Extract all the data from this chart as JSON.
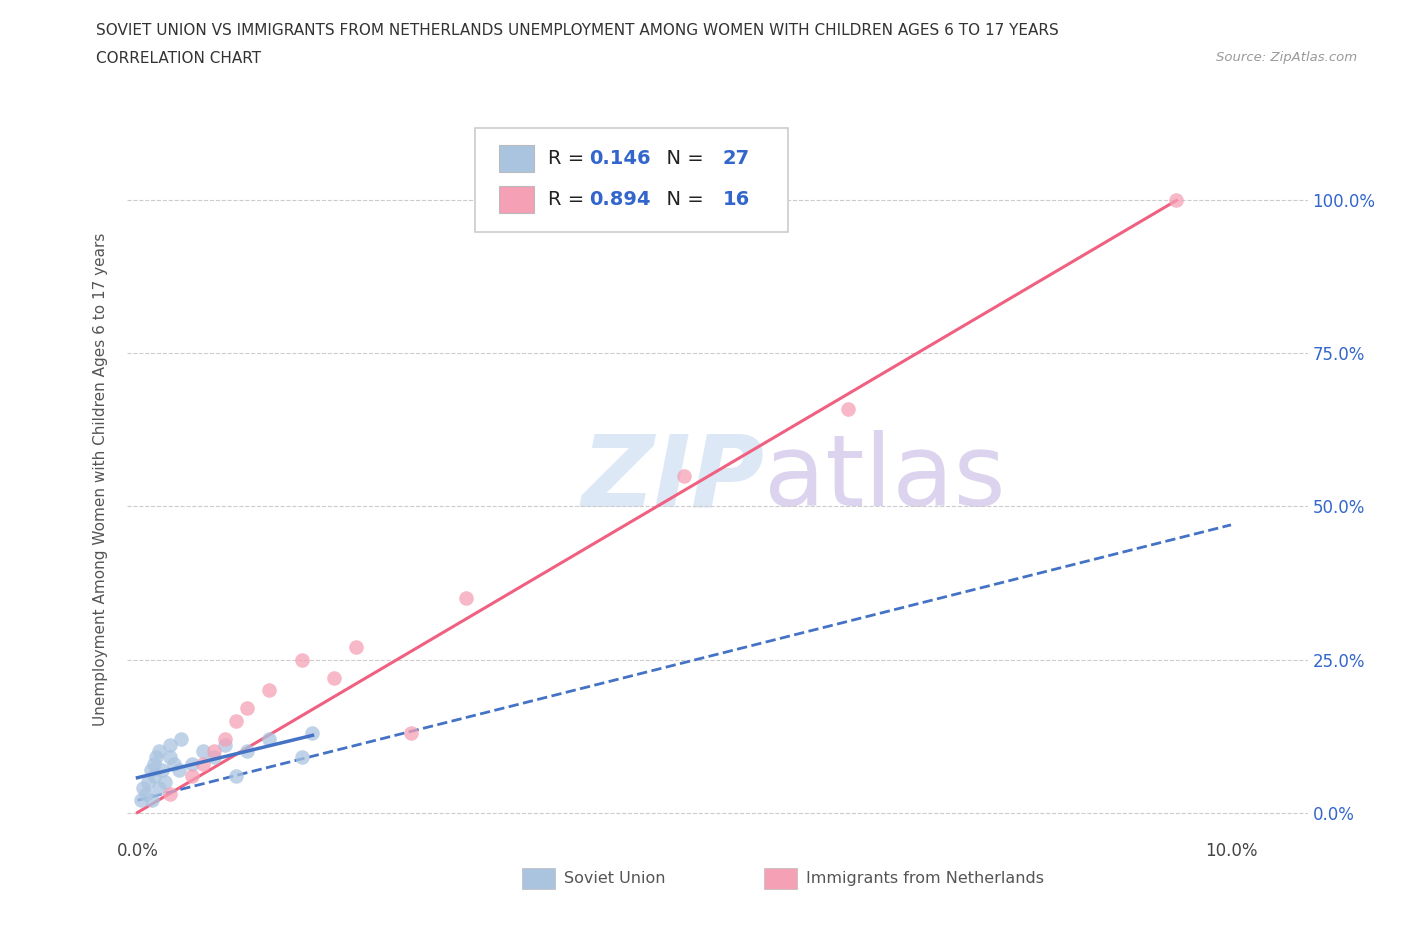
{
  "title_line1": "SOVIET UNION VS IMMIGRANTS FROM NETHERLANDS UNEMPLOYMENT AMONG WOMEN WITH CHILDREN AGES 6 TO 17 YEARS",
  "title_line2": "CORRELATION CHART",
  "source_text": "Source: ZipAtlas.com",
  "ylabel": "Unemployment Among Women with Children Ages 6 to 17 years",
  "xlim_min": -0.001,
  "xlim_max": 0.107,
  "ylim_min": -0.04,
  "ylim_max": 1.13,
  "ytick_vals": [
    0.0,
    0.25,
    0.5,
    0.75,
    1.0
  ],
  "ytick_labels": [
    "0.0%",
    "25.0%",
    "50.0%",
    "75.0%",
    "100.0%"
  ],
  "xtick_vals": [
    0.0,
    0.01,
    0.02,
    0.03,
    0.04,
    0.05,
    0.06,
    0.07,
    0.08,
    0.09,
    0.1
  ],
  "xtick_labels": [
    "0.0%",
    "",
    "",
    "",
    "",
    "",
    "",
    "",
    "",
    "",
    "10.0%"
  ],
  "soviet_color": "#aac4e0",
  "netherlands_color": "#f5a0b5",
  "soviet_line_color": "#4472c4",
  "netherlands_line_color": "#f06080",
  "r_color": "#3366cc",
  "watermark_zip_color": "#dce8f5",
  "watermark_atlas_color": "#dcd4ee",
  "grid_color": "#cccccc",
  "legend_r1": "0.146",
  "legend_n1": "27",
  "legend_r2": "0.894",
  "legend_n2": "16",
  "soviet_x": [
    0.0003,
    0.0005,
    0.0008,
    0.001,
    0.0012,
    0.0013,
    0.0015,
    0.0015,
    0.0017,
    0.002,
    0.002,
    0.0022,
    0.0025,
    0.003,
    0.003,
    0.0033,
    0.0038,
    0.004,
    0.005,
    0.006,
    0.007,
    0.008,
    0.009,
    0.01,
    0.012,
    0.015,
    0.016
  ],
  "soviet_y": [
    0.02,
    0.04,
    0.03,
    0.05,
    0.07,
    0.02,
    0.06,
    0.08,
    0.09,
    0.04,
    0.1,
    0.07,
    0.05,
    0.09,
    0.11,
    0.08,
    0.07,
    0.12,
    0.08,
    0.1,
    0.09,
    0.11,
    0.06,
    0.1,
    0.12,
    0.09,
    0.13
  ],
  "netherlands_x": [
    0.003,
    0.005,
    0.006,
    0.007,
    0.008,
    0.009,
    0.01,
    0.012,
    0.015,
    0.018,
    0.02,
    0.025,
    0.03,
    0.05,
    0.065,
    0.095
  ],
  "netherlands_y": [
    0.03,
    0.06,
    0.08,
    0.1,
    0.12,
    0.15,
    0.17,
    0.2,
    0.25,
    0.22,
    0.27,
    0.13,
    0.35,
    0.55,
    0.66,
    1.0
  ],
  "soviet_trend_x": [
    0.0,
    0.1
  ],
  "soviet_trend_y": [
    0.02,
    0.47
  ],
  "netherlands_trend_x": [
    0.0,
    0.095
  ],
  "netherlands_trend_y": [
    0.0,
    1.0
  ],
  "marker_size": 110,
  "marker_alpha": 0.75,
  "bottom_legend_soviet": "Soviet Union",
  "bottom_legend_neth": "Immigrants from Netherlands"
}
